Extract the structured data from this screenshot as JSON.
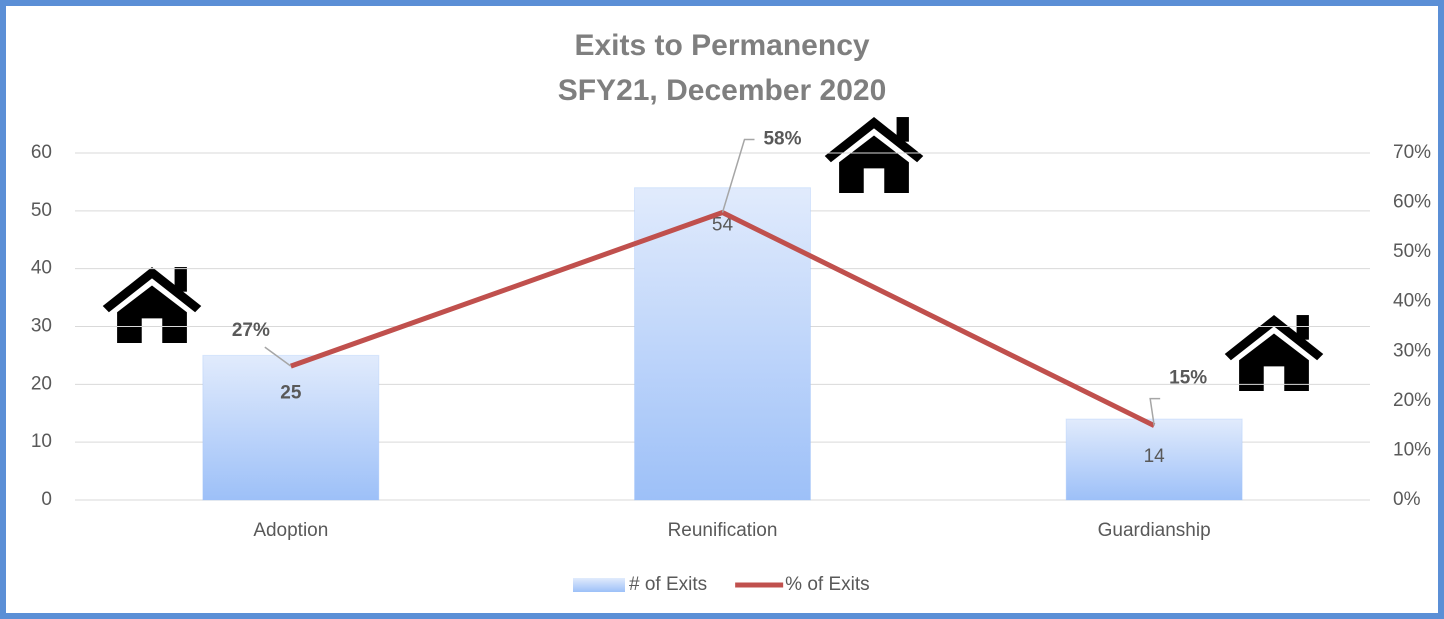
{
  "chart_data": {
    "type": "bar+line",
    "title": "Exits to Permanency",
    "subtitle": "SFY21, December 2020",
    "categories": [
      "Adoption",
      "Reunification",
      "Guardianship"
    ],
    "series": [
      {
        "name": "# of Exits",
        "type": "bar",
        "color": "#9dc0f8",
        "values": [
          25,
          54,
          14
        ]
      },
      {
        "name": "% of Exits",
        "type": "line",
        "color": "#c0504d",
        "axis": "y2",
        "values": [
          27,
          58,
          15
        ],
        "value_labels": [
          "27%",
          "58%",
          "15%"
        ]
      }
    ],
    "ylim": [
      0,
      60
    ],
    "yticks": [
      0,
      10,
      20,
      30,
      40,
      50,
      60
    ],
    "y2lim": [
      0,
      70
    ],
    "y2ticks": [
      {
        "value": 0,
        "label": "0%"
      },
      {
        "value": 10,
        "label": "10%"
      },
      {
        "value": 20,
        "label": "20%"
      },
      {
        "value": 30,
        "label": "30%"
      },
      {
        "value": 40,
        "label": "40%"
      },
      {
        "value": 50,
        "label": "50%"
      },
      {
        "value": 60,
        "label": "60%"
      },
      {
        "value": 70,
        "label": "70%"
      }
    ],
    "grid": true,
    "legend": "bottom"
  }
}
